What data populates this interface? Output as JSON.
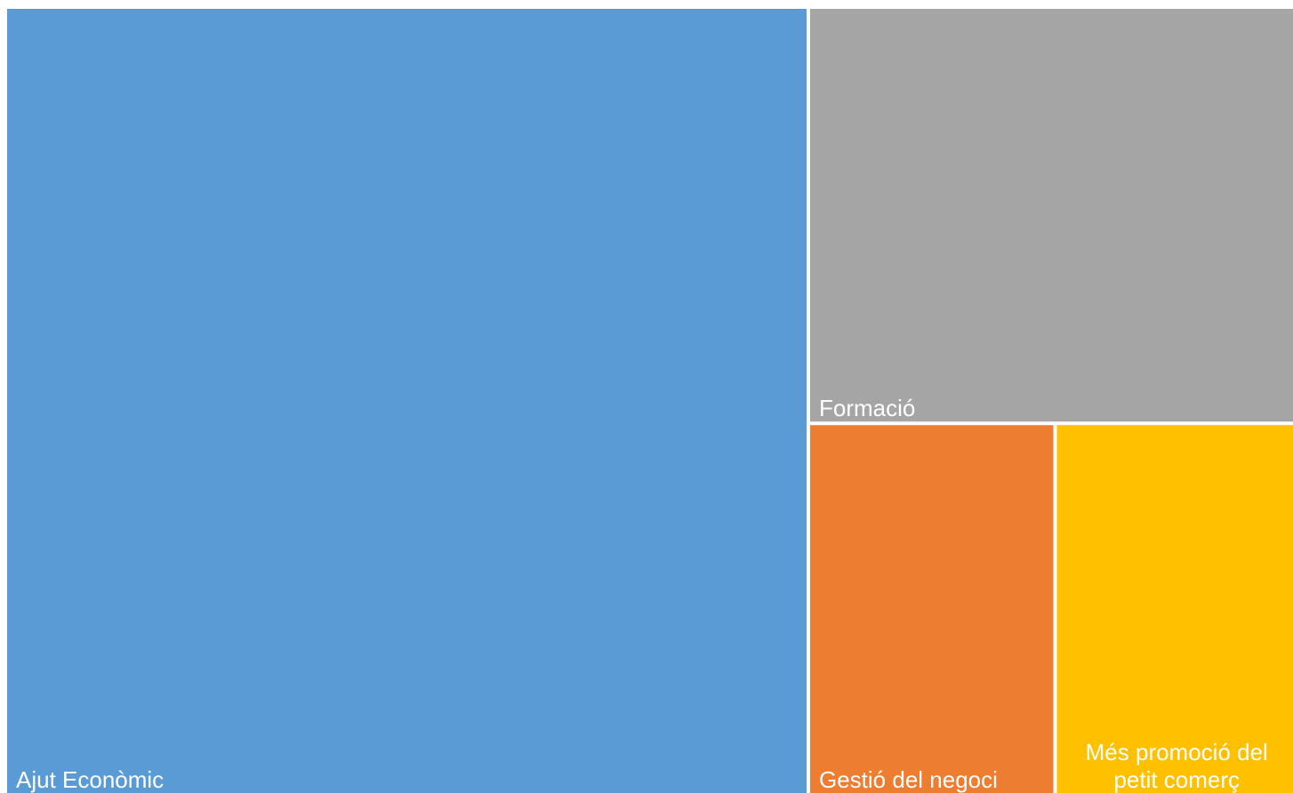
{
  "chart_data": {
    "type": "treemap",
    "items": [
      {
        "label": "Ajut Econòmic",
        "value": 62,
        "color": "#5B9BD5"
      },
      {
        "label": "Formació",
        "value": 20,
        "color": "#A5A5A5"
      },
      {
        "label": "Gestió del negoci",
        "value": 9,
        "color": "#ED7D31"
      },
      {
        "label": "Més promoció del petit comerç",
        "value": 9,
        "color": "#FFC000"
      }
    ],
    "title": ""
  }
}
